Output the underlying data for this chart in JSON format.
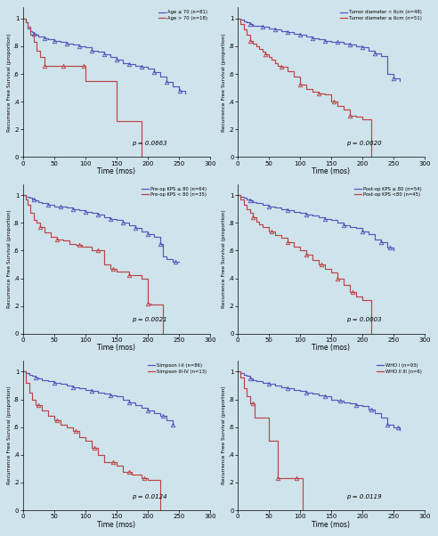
{
  "background_color": "#cfe3ec",
  "fig_width": 4.92,
  "fig_height": 6.02,
  "panels": [
    {
      "legend_lines": [
        {
          "label": "Age ≤ 70 (n=81)",
          "color": "#5555bb"
        },
        {
          "label": "Age > 70 (n=18)",
          "color": "#bb4444"
        }
      ],
      "pvalue": "p = 0.0663",
      "blue": {
        "times": [
          0,
          5,
          8,
          12,
          15,
          18,
          22,
          25,
          30,
          35,
          40,
          50,
          60,
          70,
          80,
          90,
          100,
          110,
          120,
          130,
          140,
          150,
          160,
          170,
          180,
          190,
          200,
          210,
          220,
          230,
          240,
          250,
          260
        ],
        "surv": [
          1.0,
          0.97,
          0.93,
          0.91,
          0.9,
          0.89,
          0.88,
          0.87,
          0.87,
          0.86,
          0.85,
          0.84,
          0.83,
          0.82,
          0.81,
          0.8,
          0.79,
          0.77,
          0.76,
          0.74,
          0.72,
          0.7,
          0.68,
          0.67,
          0.66,
          0.65,
          0.64,
          0.61,
          0.58,
          0.54,
          0.51,
          0.48,
          0.46
        ],
        "censors": [
          18,
          35,
          50,
          70,
          90,
          110,
          130,
          150,
          170,
          190,
          210,
          230,
          252
        ]
      },
      "red": {
        "times": [
          0,
          5,
          8,
          12,
          18,
          22,
          28,
          35,
          45,
          55,
          65,
          95,
          100,
          147,
          150,
          185,
          190
        ],
        "surv": [
          1.0,
          0.97,
          0.94,
          0.88,
          0.83,
          0.77,
          0.72,
          0.66,
          0.66,
          0.66,
          0.66,
          0.66,
          0.55,
          0.55,
          0.26,
          0.26,
          0.0
        ],
        "censors": [
          35,
          65,
          97
        ]
      }
    },
    {
      "legend_lines": [
        {
          "label": "Tumor diameter < 6cm (n=48)",
          "color": "#5555bb"
        },
        {
          "label": "Tumor diameter ≥ 6cm (n=51)",
          "color": "#bb4444"
        }
      ],
      "pvalue": "p = 0.0020",
      "blue": {
        "times": [
          0,
          5,
          10,
          15,
          20,
          25,
          30,
          40,
          50,
          60,
          70,
          80,
          90,
          100,
          110,
          120,
          130,
          140,
          150,
          160,
          170,
          180,
          190,
          200,
          210,
          220,
          230,
          240,
          250,
          260
        ],
        "surv": [
          1.0,
          0.99,
          0.98,
          0.97,
          0.96,
          0.95,
          0.95,
          0.94,
          0.93,
          0.92,
          0.91,
          0.9,
          0.89,
          0.88,
          0.87,
          0.86,
          0.85,
          0.84,
          0.83,
          0.83,
          0.82,
          0.81,
          0.8,
          0.79,
          0.77,
          0.75,
          0.73,
          0.6,
          0.57,
          0.55
        ],
        "censors": [
          20,
          40,
          60,
          80,
          100,
          120,
          140,
          160,
          180,
          200,
          220,
          250
        ]
      },
      "red": {
        "times": [
          0,
          5,
          10,
          15,
          20,
          25,
          30,
          35,
          40,
          45,
          50,
          55,
          60,
          65,
          70,
          80,
          90,
          100,
          110,
          120,
          130,
          140,
          150,
          160,
          170,
          180,
          190,
          200,
          210,
          215
        ],
        "surv": [
          1.0,
          0.96,
          0.92,
          0.88,
          0.84,
          0.82,
          0.8,
          0.78,
          0.76,
          0.74,
          0.72,
          0.7,
          0.68,
          0.66,
          0.65,
          0.62,
          0.58,
          0.52,
          0.49,
          0.47,
          0.46,
          0.45,
          0.4,
          0.37,
          0.34,
          0.3,
          0.29,
          0.27,
          0.27,
          0.0
        ],
        "censors": [
          20,
          45,
          70,
          100,
          130,
          155,
          180
        ]
      }
    },
    {
      "legend_lines": [
        {
          "label": "Pre-op KPS ≥ 80 (n=64)",
          "color": "#5555bb"
        },
        {
          "label": "Pre-op KPS < 80 (n=35)",
          "color": "#bb4444"
        }
      ],
      "pvalue": "p = 0.0021",
      "blue": {
        "times": [
          0,
          5,
          10,
          15,
          20,
          25,
          30,
          40,
          50,
          60,
          70,
          80,
          90,
          100,
          110,
          120,
          130,
          140,
          150,
          160,
          170,
          180,
          190,
          200,
          210,
          220,
          225,
          230,
          240,
          250
        ],
        "surv": [
          1.0,
          0.99,
          0.98,
          0.97,
          0.96,
          0.95,
          0.94,
          0.93,
          0.92,
          0.92,
          0.91,
          0.9,
          0.89,
          0.88,
          0.87,
          0.86,
          0.84,
          0.83,
          0.82,
          0.8,
          0.78,
          0.76,
          0.74,
          0.72,
          0.7,
          0.65,
          0.56,
          0.54,
          0.52,
          0.52
        ],
        "censors": [
          18,
          40,
          60,
          80,
          100,
          120,
          140,
          160,
          180,
          200,
          220,
          245
        ]
      },
      "red": {
        "times": [
          0,
          5,
          8,
          12,
          18,
          22,
          28,
          35,
          45,
          55,
          65,
          75,
          85,
          95,
          110,
          130,
          140,
          150,
          160,
          170,
          190,
          200,
          205,
          215,
          220,
          225
        ],
        "surv": [
          1.0,
          0.97,
          0.93,
          0.87,
          0.82,
          0.8,
          0.77,
          0.73,
          0.7,
          0.68,
          0.67,
          0.65,
          0.64,
          0.63,
          0.6,
          0.5,
          0.47,
          0.45,
          0.45,
          0.42,
          0.4,
          0.22,
          0.21,
          0.21,
          0.21,
          0.0
        ],
        "censors": [
          28,
          55,
          90,
          120,
          145,
          170,
          200
        ]
      }
    },
    {
      "legend_lines": [
        {
          "label": "Post-op KPS ≥ 80 (n=54)",
          "color": "#5555bb"
        },
        {
          "label": "Post-op KPS <80 (n=45)",
          "color": "#bb4444"
        }
      ],
      "pvalue": "p = 0.0003",
      "blue": {
        "times": [
          0,
          5,
          10,
          15,
          20,
          25,
          30,
          40,
          50,
          60,
          70,
          80,
          90,
          100,
          110,
          120,
          130,
          140,
          150,
          160,
          170,
          180,
          190,
          200,
          210,
          220,
          230,
          240,
          250
        ],
        "surv": [
          1.0,
          0.99,
          0.98,
          0.97,
          0.96,
          0.95,
          0.94,
          0.93,
          0.92,
          0.91,
          0.9,
          0.89,
          0.88,
          0.87,
          0.86,
          0.85,
          0.84,
          0.83,
          0.82,
          0.8,
          0.78,
          0.77,
          0.76,
          0.74,
          0.72,
          0.68,
          0.66,
          0.62,
          0.6
        ],
        "censors": [
          20,
          50,
          80,
          110,
          140,
          170,
          200,
          230,
          245
        ]
      },
      "red": {
        "times": [
          0,
          5,
          10,
          15,
          20,
          25,
          30,
          35,
          40,
          50,
          60,
          70,
          80,
          90,
          100,
          110,
          120,
          130,
          140,
          150,
          160,
          170,
          180,
          190,
          200,
          210,
          215
        ],
        "surv": [
          1.0,
          0.97,
          0.93,
          0.9,
          0.87,
          0.84,
          0.81,
          0.79,
          0.77,
          0.74,
          0.71,
          0.69,
          0.66,
          0.63,
          0.6,
          0.57,
          0.53,
          0.5,
          0.47,
          0.44,
          0.4,
          0.35,
          0.3,
          0.27,
          0.24,
          0.24,
          0.0
        ],
        "censors": [
          25,
          55,
          80,
          110,
          135,
          160,
          185
        ]
      }
    },
    {
      "legend_lines": [
        {
          "label": "Simpson I-II (n=86)",
          "color": "#5555bb"
        },
        {
          "label": "Simpson III-IV (n=13)",
          "color": "#bb4444"
        }
      ],
      "pvalue": "p = 0.0124",
      "blue": {
        "times": [
          0,
          5,
          10,
          15,
          20,
          25,
          30,
          40,
          50,
          60,
          70,
          80,
          90,
          100,
          110,
          120,
          130,
          140,
          150,
          160,
          170,
          180,
          190,
          200,
          210,
          220,
          230,
          240
        ],
        "surv": [
          1.0,
          0.99,
          0.98,
          0.97,
          0.96,
          0.95,
          0.94,
          0.93,
          0.92,
          0.91,
          0.9,
          0.89,
          0.88,
          0.87,
          0.86,
          0.85,
          0.84,
          0.83,
          0.82,
          0.8,
          0.78,
          0.76,
          0.74,
          0.72,
          0.7,
          0.68,
          0.65,
          0.62
        ],
        "censors": [
          20,
          50,
          80,
          110,
          140,
          170,
          200,
          225,
          240
        ]
      },
      "red": {
        "times": [
          0,
          5,
          10,
          15,
          20,
          30,
          40,
          50,
          60,
          70,
          80,
          90,
          100,
          110,
          120,
          130,
          150,
          160,
          175,
          180,
          190,
          200,
          210,
          215,
          220
        ],
        "surv": [
          1.0,
          0.92,
          0.85,
          0.8,
          0.76,
          0.72,
          0.68,
          0.65,
          0.62,
          0.6,
          0.57,
          0.53,
          0.5,
          0.45,
          0.4,
          0.35,
          0.32,
          0.28,
          0.26,
          0.26,
          0.23,
          0.22,
          0.22,
          0.22,
          0.0
        ],
        "censors": [
          25,
          55,
          85,
          115,
          145,
          170,
          195
        ]
      }
    },
    {
      "legend_lines": [
        {
          "label": "WHO I (n=93)",
          "color": "#5555bb"
        },
        {
          "label": "WHO II III (n=6)",
          "color": "#bb4444"
        }
      ],
      "pvalue": "p = 0.0119",
      "blue": {
        "times": [
          0,
          5,
          10,
          15,
          20,
          25,
          30,
          40,
          50,
          60,
          70,
          80,
          90,
          100,
          110,
          120,
          130,
          140,
          150,
          160,
          170,
          180,
          190,
          200,
          210,
          220,
          230,
          240,
          250,
          260
        ],
        "surv": [
          1.0,
          0.99,
          0.98,
          0.97,
          0.95,
          0.94,
          0.93,
          0.92,
          0.91,
          0.9,
          0.89,
          0.88,
          0.87,
          0.86,
          0.85,
          0.84,
          0.83,
          0.82,
          0.8,
          0.79,
          0.78,
          0.77,
          0.76,
          0.75,
          0.73,
          0.7,
          0.67,
          0.62,
          0.6,
          0.58
        ],
        "censors": [
          20,
          50,
          80,
          110,
          140,
          165,
          190,
          215,
          240,
          258
        ]
      },
      "red": {
        "times": [
          0,
          5,
          10,
          15,
          20,
          28,
          35,
          50,
          65,
          70,
          80,
          90,
          95,
          100,
          105
        ],
        "surv": [
          1.0,
          0.96,
          0.88,
          0.82,
          0.77,
          0.67,
          0.67,
          0.5,
          0.23,
          0.23,
          0.23,
          0.23,
          0.23,
          0.23,
          0.0
        ],
        "censors": [
          25,
          65,
          95
        ]
      }
    }
  ]
}
